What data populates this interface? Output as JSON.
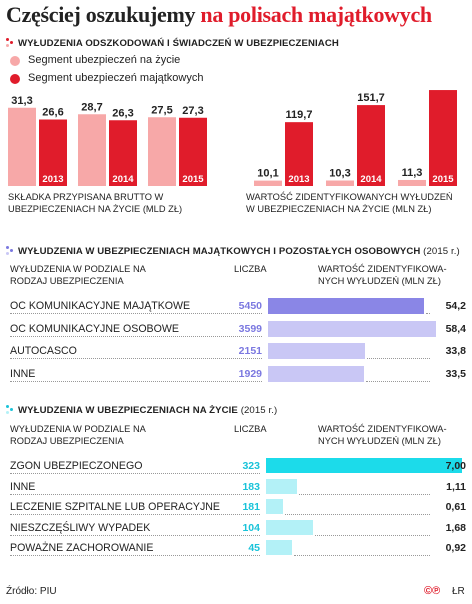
{
  "title": {
    "main": "Częściej oszukujemy",
    "highlight": "na polisach majątkowych"
  },
  "section1": {
    "header": "WYŁUDZENIA ODSZKODOWAŃ I ŚWIADCZEŃ W UBEZPIECZENIACH",
    "legend": [
      {
        "label": "Segment ubezpieczeń na życie",
        "color": "#f7a8a8"
      },
      {
        "label": "Segment ubezpieczeń majątkowych",
        "color": "#e01c2b"
      }
    ]
  },
  "section2": {
    "header": "WYŁUDZENIA W UBEZPIECZENIACH MAJĄTKOWYCH I POZOSTAŁYCH OSOBOWYCH",
    "year": "(2015 r.)",
    "col1": "WYŁUDZENIA W PODZIALE NA RODZAJ UBEZPIECZENIA",
    "col2": "LICZBA",
    "col3": "WARTOŚĆ ZIDENTYFIKOWA-NYCH WYŁUDZEŃ (MLN ZŁ)"
  },
  "section3": {
    "header": "WYŁUDZENIA W UBEZPIECZENIACH NA ŻYCIE",
    "year": "(2015 r.)",
    "col1": "WYŁUDZENIA W PODZIALE NA RODZAJ UBEZPIECZENIA",
    "col2": "LICZBA",
    "col3": "WARTOŚĆ ZIDENTYFIKOWA-NYCH WYŁUDZEŃ (MLN ZŁ)"
  },
  "footer": {
    "source": "Źródło: PIU",
    "mark": "©℗",
    "initials": "ŁR"
  },
  "chart_data": [
    {
      "type": "bar",
      "categories": [
        "2013",
        "2014",
        "2015"
      ],
      "series": [
        {
          "name": "Segment ubezpieczeń na życie",
          "values": [
            31.3,
            28.7,
            27.5
          ],
          "labels": [
            "31,3",
            "28,7",
            "27,5"
          ],
          "color": "#f7a8a8"
        },
        {
          "name": "Segment ubezpieczeń majątkowych",
          "values": [
            26.6,
            26.3,
            27.3
          ],
          "labels": [
            "26,6",
            "26,3",
            "27,3"
          ],
          "color": "#e01c2b"
        }
      ],
      "xlabel": "SKŁADKA PRZYPISANA BRUTTO W UBEZPIECZENIACH NA ŻYCIE (MLD ZŁ)"
    },
    {
      "type": "bar",
      "categories": [
        "2013",
        "2014",
        "2015"
      ],
      "series": [
        {
          "name": "Segment ubezpieczeń na życie",
          "values": [
            10.1,
            10.3,
            11.3
          ],
          "labels": [
            "10,1",
            "10,3",
            "11,3"
          ],
          "color": "#f7a8a8"
        },
        {
          "name": "Segment ubezpieczeń majątkowych",
          "values": [
            119.7,
            151.7,
            179.9
          ],
          "labels": [
            "119,7",
            "151,7",
            "179,9"
          ],
          "color": "#e01c2b"
        }
      ],
      "xlabel": "WARTOŚĆ ZIDENTYFIKOWANYCH WYŁUDZEŃ W UBEZPIECZENIACH NA ŻYCIE (MLN ZŁ)"
    },
    {
      "type": "bar",
      "categories": [
        "OC KOMUNIKACYJNE MAJĄTKOWE",
        "OC KOMUNIKACYJNE OSOBOWE",
        "AUTOCASCO",
        "INNE"
      ],
      "counts": [
        5450,
        3599,
        2151,
        1929
      ],
      "count_labels": [
        "5450",
        "3599",
        "2151",
        "1929"
      ],
      "values": [
        54.2,
        58.4,
        33.8,
        33.5
      ],
      "value_labels": [
        "54,2",
        "58,4",
        "33,8",
        "33,5"
      ],
      "bar_color": "#c9c7f5",
      "highlight_color": "#8a86e6"
    },
    {
      "type": "bar",
      "categories": [
        "ZGON UBEZPIECZONEGO",
        "INNE",
        "LECZENIE SZPITALNE LUB OPERACYJNE",
        "NIESZCZĘŚLIWY WYPADEK",
        "POWAŻNE ZACHOROWANIE"
      ],
      "counts": [
        323,
        183,
        181,
        104,
        45
      ],
      "count_labels": [
        "323",
        "183",
        "181",
        "104",
        "45"
      ],
      "values": [
        7.0,
        1.11,
        0.61,
        1.68,
        0.92
      ],
      "value_labels": [
        "7,00",
        "1,11",
        "0,61",
        "1,68",
        "0,92"
      ],
      "bar_color": "#b3f1f7",
      "highlight_color": "#1cdbea"
    }
  ]
}
